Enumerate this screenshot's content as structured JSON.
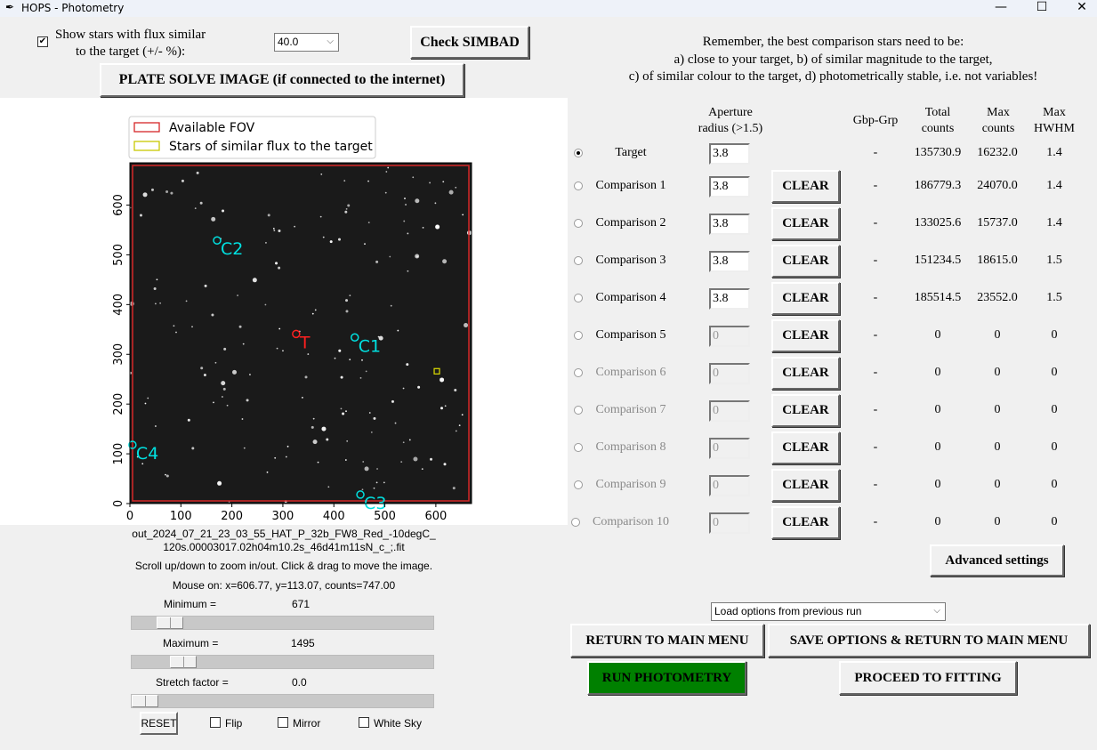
{
  "window": {
    "title": "HOPS - Photometry",
    "minimize": "—",
    "maximize": "☐",
    "close": "✕"
  },
  "top": {
    "flux_checkbox_checked": true,
    "flux_label_1": "Show stars with flux similar",
    "flux_label_2": "to the target (+/- %):",
    "flux_value": "40.0",
    "simbad": "Check SIMBAD",
    "plate_solve": "PLATE SOLVE IMAGE (if connected to the internet)"
  },
  "advice": {
    "line1": "Remember, the best comparison stars need to be:",
    "line2": "a) close to your target, b) of similar magnitude to the target,",
    "line3": "c) of similar colour to the target, d) photometrically stable, i.e. not variables!"
  },
  "plot": {
    "legend": [
      {
        "label": "Available FOV",
        "color": "#d62728"
      },
      {
        "label": "Stars of similar flux to the target",
        "color": "#c8c800"
      }
    ],
    "xticks": [
      0,
      100,
      200,
      300,
      400,
      500,
      600
    ],
    "yticks": [
      0,
      100,
      200,
      300,
      400,
      500,
      600
    ],
    "xlim": [
      0,
      670
    ],
    "ylim": [
      0,
      685
    ],
    "markers": [
      {
        "label": "T",
        "x": 326,
        "y": 341,
        "color": "#ff2020"
      },
      {
        "label": "C1",
        "x": 441,
        "y": 334,
        "color": "#00e0e0"
      },
      {
        "label": "C2",
        "x": 171,
        "y": 529,
        "color": "#00e0e0"
      },
      {
        "label": "C3",
        "x": 452,
        "y": 18,
        "color": "#00e0e0"
      },
      {
        "label": "C4",
        "x": 5,
        "y": 118,
        "color": "#00e0e0"
      }
    ],
    "similar_flux": [
      {
        "x": 602,
        "y": 266
      }
    ]
  },
  "image_info": {
    "file_1": "out_2024_07_21_23_03_55_HAT_P_32b_FW8_Red_-10degC_",
    "file_2": "120s.00003017.02h04m10.2s_46d41m11sN_c_;.fit",
    "hint": "Scroll up/down to zoom in/out. Click & drag to move the image.",
    "mouse": "Mouse on: x=606.77, y=113.07, counts=747.00"
  },
  "controls": {
    "min_label": "Minimum =",
    "min_value": "671",
    "min_pos": 0.09,
    "max_label": "Maximum =",
    "max_value": "1495",
    "max_pos": 0.14,
    "stretch_label": "Stretch factor =",
    "stretch_value": "0.0",
    "stretch_pos": 0.0,
    "reset": "RESET",
    "flip": "Flip",
    "mirror": "Mirror",
    "white_sky": "White Sky"
  },
  "table": {
    "headers": {
      "aperture_1": "Aperture",
      "aperture_2": "radius (>1.5)",
      "gbp": "Gbp-Grp",
      "total_1": "Total",
      "total_2": "counts",
      "max_1": "Max",
      "max_2": "counts",
      "hwhm_1": "Max",
      "hwhm_2": "HWHM"
    },
    "clear": "CLEAR",
    "rows": [
      {
        "label": "Target",
        "selected": true,
        "enabled": true,
        "aperture": "3.8",
        "gbp": "-",
        "total": "135730.9",
        "max": "16232.0",
        "hwhm": "1.4"
      },
      {
        "label": "Comparison 1",
        "enabled": true,
        "aperture": "3.8",
        "gbp": "-",
        "total": "186779.3",
        "max": "24070.0",
        "hwhm": "1.4"
      },
      {
        "label": "Comparison 2",
        "enabled": true,
        "aperture": "3.8",
        "gbp": "-",
        "total": "133025.6",
        "max": "15737.0",
        "hwhm": "1.4"
      },
      {
        "label": "Comparison 3",
        "enabled": true,
        "aperture": "3.8",
        "gbp": "-",
        "total": "151234.5",
        "max": "18615.0",
        "hwhm": "1.5"
      },
      {
        "label": "Comparison 4",
        "enabled": true,
        "aperture": "3.8",
        "gbp": "-",
        "total": "185514.5",
        "max": "23552.0",
        "hwhm": "1.5"
      },
      {
        "label": "Comparison 5",
        "enabled": true,
        "aperture": "0",
        "gbp": "-",
        "total": "0",
        "max": "0",
        "hwhm": "0"
      },
      {
        "label": "Comparison 6",
        "enabled": false,
        "aperture": "0",
        "gbp": "-",
        "total": "0",
        "max": "0",
        "hwhm": "0"
      },
      {
        "label": "Comparison 7",
        "enabled": false,
        "aperture": "0",
        "gbp": "-",
        "total": "0",
        "max": "0",
        "hwhm": "0"
      },
      {
        "label": "Comparison 8",
        "enabled": false,
        "aperture": "0",
        "gbp": "-",
        "total": "0",
        "max": "0",
        "hwhm": "0"
      },
      {
        "label": "Comparison 9",
        "enabled": false,
        "aperture": "0",
        "gbp": "-",
        "total": "0",
        "max": "0",
        "hwhm": "0"
      },
      {
        "label": "Comparison 10",
        "enabled": false,
        "aperture": "0",
        "gbp": "-",
        "total": "0",
        "max": "0",
        "hwhm": "0"
      }
    ]
  },
  "bottom": {
    "advanced": "Advanced settings",
    "load_options": "Load options from previous run",
    "return": "RETURN TO MAIN MENU",
    "save_return": "SAVE OPTIONS & RETURN TO MAIN MENU",
    "run": "RUN PHOTOMETRY",
    "run_color": "#008000",
    "fitting": "PROCEED TO FITTING"
  }
}
